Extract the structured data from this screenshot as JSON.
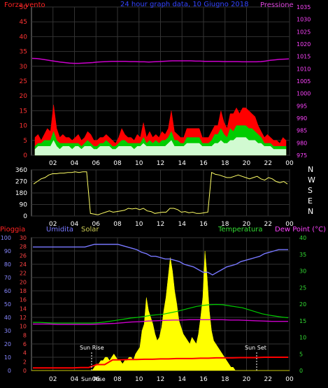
{
  "chart_data": [
    {
      "type": "line",
      "title": "24 hour graph data, 10 Giugno 2018",
      "left_label": "Forza vento",
      "right_label": "Pressione",
      "y_left_ticks": [
        "0",
        "5",
        "10",
        "15",
        "20",
        "25",
        "30",
        "35",
        "40",
        "45",
        "50"
      ],
      "y_right_ticks": [
        "975",
        "980",
        "985",
        "990",
        "995",
        "1000",
        "1005",
        "1010",
        "1015",
        "1020",
        "1025",
        "1030",
        "1035"
      ],
      "ylim_left": [
        0,
        50
      ],
      "ylim_right": [
        975,
        1035
      ],
      "x_ticks": [
        "02",
        "04",
        "06",
        "08",
        "10",
        "12",
        "14",
        "16",
        "18",
        "20",
        "22",
        "00"
      ],
      "series": [
        {
          "color": "#ff0000",
          "values": [
            6,
            7,
            5,
            7,
            9,
            8,
            17,
            9,
            6,
            7,
            6,
            6,
            5,
            6,
            7,
            5,
            6,
            8,
            7,
            5,
            5,
            6,
            6,
            7,
            6,
            5,
            4,
            6,
            9,
            7,
            6,
            6,
            5,
            7,
            6,
            11,
            6,
            8,
            6,
            7,
            6,
            8,
            7,
            9,
            15,
            8,
            7,
            6,
            6,
            9,
            9,
            9,
            9,
            9,
            6,
            6,
            6,
            8,
            10,
            10,
            15,
            11,
            9,
            14,
            14,
            16,
            14,
            16,
            16,
            15,
            14,
            13,
            10,
            8,
            6,
            7,
            6,
            5,
            5,
            4,
            6,
            5
          ]
        },
        {
          "color": "#00cc00",
          "values": [
            3,
            4,
            4,
            5,
            5,
            5,
            8,
            5,
            4,
            4,
            4,
            4,
            4,
            4,
            4,
            3,
            4,
            5,
            4,
            3,
            3,
            4,
            4,
            5,
            4,
            3,
            3,
            4,
            5,
            5,
            4,
            4,
            4,
            4,
            4,
            6,
            4,
            5,
            4,
            5,
            4,
            5,
            5,
            6,
            8,
            5,
            5,
            4,
            4,
            6,
            6,
            6,
            6,
            6,
            4,
            4,
            4,
            5,
            7,
            7,
            9,
            7,
            6,
            9,
            8,
            10,
            10,
            10,
            10,
            9,
            9,
            8,
            7,
            6,
            4,
            4,
            4,
            3,
            3,
            3,
            3,
            3
          ]
        },
        {
          "color": "#e8ffe8",
          "values": [
            2,
            3,
            3,
            3,
            3,
            3,
            5,
            3,
            2,
            3,
            3,
            3,
            2,
            3,
            3,
            2,
            3,
            3,
            3,
            2,
            2,
            3,
            3,
            3,
            3,
            2,
            2,
            3,
            3,
            3,
            3,
            3,
            2,
            3,
            3,
            4,
            3,
            3,
            3,
            3,
            3,
            3,
            3,
            4,
            5,
            3,
            3,
            3,
            3,
            4,
            4,
            4,
            4,
            4,
            3,
            3,
            3,
            3,
            4,
            4,
            5,
            4,
            4,
            5,
            5,
            6,
            6,
            6,
            6,
            5,
            5,
            5,
            4,
            4,
            3,
            3,
            3,
            2,
            2,
            2,
            2,
            2
          ]
        },
        {
          "color": "#cc00cc",
          "axis": "right",
          "values": [
            1014.2,
            1014.1,
            1013.9,
            1013.6,
            1013.3,
            1013.0,
            1012.7,
            1012.5,
            1012.3,
            1012.2,
            1012.2,
            1012.3,
            1012.4,
            1012.5,
            1012.7,
            1012.8,
            1012.9,
            1013.0,
            1013.0,
            1013.0,
            1013.0,
            1012.9,
            1012.9,
            1012.8,
            1012.8,
            1012.7,
            1012.8,
            1012.9,
            1013.0,
            1013.1,
            1013.2,
            1013.2,
            1013.2,
            1013.2,
            1013.2,
            1013.1,
            1013.1,
            1013.0,
            1013.0,
            1013.0,
            1013.0,
            1012.9,
            1012.9,
            1012.9,
            1012.9,
            1012.8,
            1012.8,
            1012.8,
            1012.8,
            1012.9,
            1013.1,
            1013.4,
            1013.6,
            1013.8,
            1013.9,
            1014.0
          ]
        }
      ]
    },
    {
      "type": "line",
      "right_letters": [
        "N",
        "W",
        "S",
        "E",
        "N"
      ],
      "y_ticks": [
        "0",
        "90",
        "180",
        "270",
        "360"
      ],
      "ylim": [
        0,
        360
      ],
      "x_ticks": [
        "02",
        "04",
        "06",
        "08",
        "10",
        "12",
        "14",
        "16",
        "18",
        "20",
        "22",
        "00"
      ],
      "series": [
        {
          "color": "#ffff66",
          "values": [
            250,
            270,
            290,
            300,
            320,
            330,
            330,
            335,
            335,
            340,
            340,
            345,
            340,
            345,
            345,
            20,
            15,
            10,
            20,
            30,
            40,
            30,
            35,
            40,
            45,
            60,
            55,
            60,
            50,
            60,
            40,
            35,
            20,
            25,
            30,
            30,
            60,
            60,
            50,
            30,
            35,
            25,
            30,
            20,
            20,
            25,
            30,
            340,
            325,
            320,
            310,
            300,
            300,
            310,
            320,
            310,
            300,
            290,
            300,
            310,
            290,
            280,
            300,
            290,
            270,
            260,
            270,
            250
          ]
        }
      ]
    },
    {
      "type": "line",
      "labels": {
        "rain": "Pioggia",
        "humidity": "Umidita",
        "solar": "Solar",
        "temperature": "Temperatura",
        "dewpoint": "Dew Point (°C)"
      },
      "y_left_ticks": [
        "0",
        "10",
        "20",
        "30",
        "40",
        "50",
        "60",
        "70",
        "80",
        "90",
        "100"
      ],
      "y_mid_ticks": [
        "0",
        "2",
        "4",
        "6",
        "8",
        "10",
        "12",
        "14",
        "16",
        "18",
        "20",
        "22",
        "24",
        "26",
        "28",
        "30"
      ],
      "y_right_ticks": [
        "0",
        "5",
        "10",
        "15",
        "20",
        "25",
        "30",
        "35",
        "40"
      ],
      "ylim_humidity": [
        0,
        100
      ],
      "ylim_temperature": [
        0,
        40
      ],
      "x_ticks": [
        "02",
        "04",
        "06",
        "08",
        "10",
        "12",
        "14",
        "16",
        "18",
        "20",
        "22",
        "00"
      ],
      "annotations": [
        "Sun Rise",
        "Sun Rise",
        "Sun Set"
      ],
      "series": [
        {
          "name": "Umidita",
          "color": "#7777ff",
          "values": [
            93,
            93,
            93,
            93,
            93,
            93,
            93,
            93,
            93,
            93,
            93,
            93,
            94,
            95,
            95,
            95,
            95,
            95,
            95,
            94,
            93,
            92,
            91,
            89,
            88,
            86,
            86,
            85,
            84,
            84,
            83,
            82,
            80,
            79,
            78,
            76,
            74,
            74,
            72,
            74,
            76,
            78,
            79,
            80,
            82,
            83,
            84,
            85,
            86,
            88,
            89,
            90,
            91,
            91,
            91
          ]
        },
        {
          "name": "Temperatura",
          "color": "#00cc00",
          "values": [
            14.5,
            14.5,
            14.4,
            14.3,
            14.3,
            14.3,
            14.3,
            14.3,
            14.3,
            14.3,
            14.4,
            14.6,
            14.9,
            15.2,
            15.5,
            15.8,
            16.0,
            16.3,
            16.6,
            16.8,
            17.0,
            17.4,
            17.8,
            18.3,
            18.8,
            19.3,
            19.6,
            19.8,
            19.9,
            19.8,
            19.5,
            19.2,
            18.9,
            18.3,
            17.7,
            17.1,
            16.7,
            16.4,
            16.1,
            15.9
          ]
        },
        {
          "name": "Dew Point",
          "color": "#cc00cc",
          "values": [
            14.0,
            14.0,
            14.0,
            13.9,
            13.9,
            13.9,
            13.9,
            13.9,
            14.0,
            14.1,
            14.2,
            14.4,
            14.6,
            14.7,
            14.9,
            15.0,
            15.1,
            15.2,
            15.2,
            15.3,
            15.3,
            15.3,
            15.3,
            15.3,
            15.2,
            15.2,
            15.1,
            15.0,
            14.9,
            14.8,
            14.8,
            14.8
          ]
        },
        {
          "name": "Pioggia",
          "color": "#ff0000",
          "values": [
            0.8,
            0.8,
            0.8,
            0.8,
            0.8,
            0.8,
            0.9,
            0.9,
            1.8,
            1.8,
            3.2,
            3.2,
            3.3,
            3.3,
            3.4,
            3.4,
            3.5,
            3.5,
            3.6,
            3.6,
            3.6,
            3.7,
            3.7,
            3.8,
            3.8,
            3.8,
            3.9,
            3.9,
            3.9,
            4.0,
            4.0,
            4.0,
            4.0
          ]
        },
        {
          "name": "Solar",
          "color": "#ffff00",
          "values": [
            0,
            0,
            0,
            0,
            0,
            0,
            0,
            0,
            0,
            0,
            0,
            0,
            0,
            0,
            0,
            0,
            0,
            0,
            0,
            0,
            0,
            0,
            0,
            0,
            0,
            0,
            0,
            0,
            0,
            1,
            2,
            2,
            3,
            3,
            4,
            4,
            3,
            4,
            5,
            4,
            3,
            3,
            2,
            3,
            3,
            4,
            4,
            3,
            5,
            6,
            7,
            12,
            14,
            22,
            18,
            16,
            14,
            11,
            9,
            10,
            13,
            18,
            22,
            28,
            34,
            30,
            24,
            20,
            15,
            13,
            11,
            10,
            9,
            8,
            10,
            9,
            8,
            11,
            16,
            22,
            36,
            28,
            18,
            12,
            9,
            8,
            7,
            6,
            5,
            4,
            3,
            2,
            1,
            1,
            0,
            0,
            0,
            0,
            0,
            0,
            0,
            0,
            0,
            0,
            0,
            0,
            0,
            0,
            0,
            0,
            0,
            0,
            0,
            0,
            0,
            0,
            0,
            0,
            0,
            0
          ]
        }
      ]
    }
  ]
}
